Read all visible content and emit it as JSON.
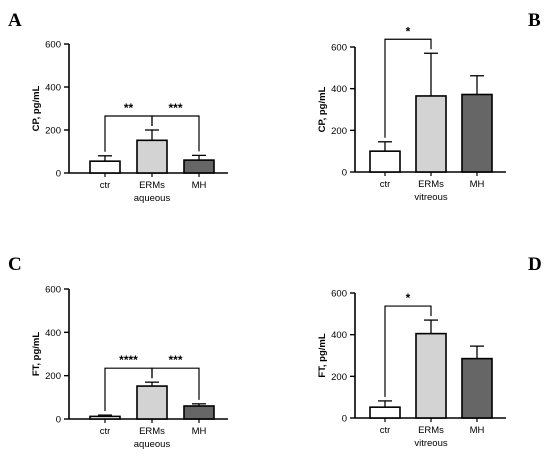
{
  "panels": [
    {
      "letter": "A"
    },
    {
      "letter": "B"
    },
    {
      "letter": "C"
    },
    {
      "letter": "D"
    }
  ],
  "colors": {
    "ctr": "#ffffff",
    "ERMs": "#d3d3d3",
    "MH": "#666666",
    "stroke": "#000000"
  },
  "chart_data": [
    {
      "type": "bar",
      "panel": "A",
      "categories": [
        "ctr",
        "ERMs",
        "MH"
      ],
      "values": [
        55,
        152,
        60
      ],
      "error": [
        25,
        48,
        22
      ],
      "xlabel": "aqueous",
      "ylabel": "CP, pg/mL",
      "ylim": [
        0,
        600
      ],
      "yticks": [
        "0",
        "200",
        "400",
        "600"
      ],
      "significance": [
        {
          "from": "ctr",
          "to": "ERMs",
          "label": "**"
        },
        {
          "from": "ERMs",
          "to": "MH",
          "label": "***"
        }
      ]
    },
    {
      "type": "bar",
      "panel": "B",
      "categories": [
        "ctr",
        "ERMs",
        "MH"
      ],
      "values": [
        100,
        365,
        372
      ],
      "error": [
        45,
        205,
        90
      ],
      "xlabel": "vitreous",
      "ylabel": "CP, pg/mL",
      "ylim": [
        0,
        600
      ],
      "yticks": [
        "0",
        "200",
        "400",
        "600"
      ],
      "significance": [
        {
          "from": "ctr",
          "to": "ERMs",
          "label": "*"
        }
      ]
    },
    {
      "type": "bar",
      "panel": "C",
      "categories": [
        "ctr",
        "ERMs",
        "MH"
      ],
      "values": [
        12,
        152,
        60
      ],
      "error": [
        6,
        18,
        10
      ],
      "xlabel": "aqueous",
      "ylabel": "FT, pg/mL",
      "ylim": [
        0,
        600
      ],
      "yticks": [
        "0",
        "200",
        "400",
        "600"
      ],
      "significance": [
        {
          "from": "ctr",
          "to": "ERMs",
          "label": "****"
        },
        {
          "from": "ERMs",
          "to": "MH",
          "label": "***"
        }
      ]
    },
    {
      "type": "bar",
      "panel": "D",
      "categories": [
        "ctr",
        "ERMs",
        "MH"
      ],
      "values": [
        52,
        405,
        285
      ],
      "error": [
        30,
        65,
        60
      ],
      "xlabel": "vitreous",
      "ylabel": "FT, pg/mL",
      "ylim": [
        0,
        600
      ],
      "yticks": [
        "0",
        "200",
        "400",
        "600"
      ],
      "significance": [
        {
          "from": "ctr",
          "to": "ERMs",
          "label": "*"
        }
      ]
    }
  ]
}
